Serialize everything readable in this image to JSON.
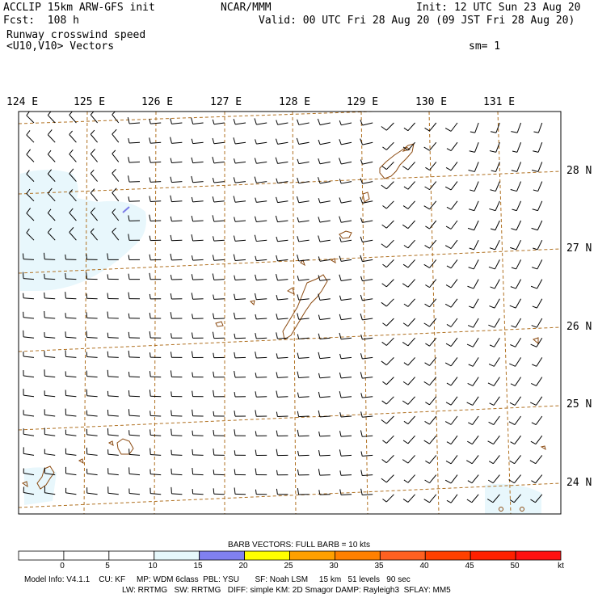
{
  "header": {
    "model_line": "ACCLIP 15km ARW-GFS init",
    "center": "NCAR/MMM",
    "init": "Init: 12 UTC Sun 23 Aug 20",
    "fcst": "Fcst:  108 h",
    "valid": "Valid: 00 UTC Fri 28 Aug 20 (09 JST Fri 28 Aug 20)",
    "field": "Runway crosswind speed",
    "vectors": "<U10,V10> Vectors",
    "sm": "sm= 1"
  },
  "map": {
    "lon_labels": [
      "124 E",
      "125 E",
      "126 E",
      "127 E",
      "128 E",
      "129 E",
      "130 E",
      "131 E"
    ],
    "lat_labels": [
      "28 N",
      "27 N",
      "26 N",
      "25 N",
      "24 N"
    ],
    "colors": {
      "grid": "#b07020",
      "coast": "#8b4a10",
      "shade": "#e8f7fc",
      "barb": "#000000",
      "highlight": "#7a7ae8"
    }
  },
  "colorbar": {
    "title": "BARB VECTORS:  FULL BARB = 10 kts",
    "labels": [
      "0",
      "5",
      "10",
      "15",
      "20",
      "25",
      "30",
      "35",
      "40",
      "45",
      "50"
    ],
    "unit": "kt",
    "colors": [
      "#ffffff",
      "#ffffff",
      "#ffffff",
      "#ffffff",
      "#e6f8fb",
      "#8080f0",
      "#ffff00",
      "#ffa000",
      "#ff8000",
      "#ff6020",
      "#ff4000",
      "#ff2000",
      "#ff1010"
    ]
  },
  "footer": {
    "line1": "Model Info: V4.1.1    CU: KF     MP: WDM 6class  PBL: YSU       SF: Noah LSM     15 km   51 levels   90 sec",
    "line2": "LW: RRTMG   SW: RRTMG   DIFF: simple KM: 2D Smagor DAMP: Rayleigh3  SFLAY: MM5"
  }
}
